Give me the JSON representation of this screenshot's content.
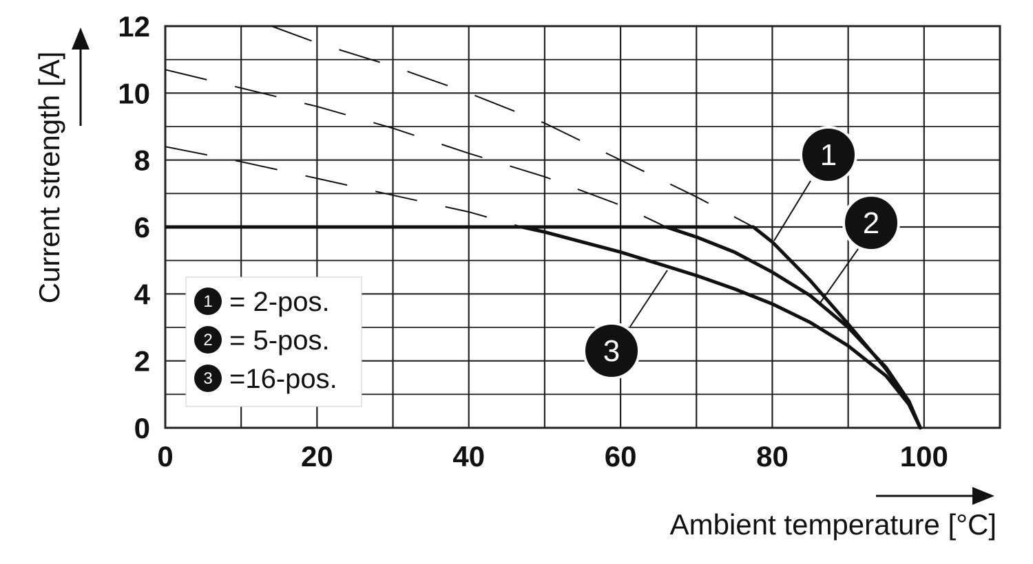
{
  "chart_data": {
    "type": "line",
    "xlabel": "Ambient temperature [°C]",
    "ylabel": "Current strength [A]",
    "xlim": [
      0,
      110
    ],
    "ylim": [
      0,
      12
    ],
    "x_major_ticks": [
      0,
      20,
      40,
      60,
      80,
      100
    ],
    "y_major_ticks": [
      0,
      2,
      4,
      6,
      8,
      10,
      12
    ],
    "x_grid_step": 10,
    "y_grid_step": 1,
    "grid": true,
    "legend": {
      "placement": "bottom-left",
      "entries": [
        {
          "marker": "1",
          "text": "= 2-pos."
        },
        {
          "marker": "2",
          "text": "= 5-pos."
        },
        {
          "marker": "3",
          "text": "=16-pos."
        }
      ]
    },
    "plateau": {
      "y": 6,
      "x_start": 0,
      "x_end": 77.5
    },
    "series": [
      {
        "marker": "1",
        "solid": {
          "x": [
            77.5,
            80,
            85,
            90,
            95,
            98,
            99.5
          ],
          "y": [
            6.0,
            5.55,
            4.4,
            3.1,
            1.75,
            0.75,
            0.0
          ]
        },
        "dashed": {
          "x": [
            14,
            20,
            30,
            40,
            50,
            60,
            70,
            77.5
          ],
          "y": [
            12.0,
            11.5,
            10.8,
            10.0,
            9.1,
            8.0,
            6.9,
            6.0
          ]
        }
      },
      {
        "marker": "2",
        "solid": {
          "x": [
            66,
            70,
            75,
            80,
            85,
            90,
            95,
            98,
            99.5
          ],
          "y": [
            6.0,
            5.7,
            5.25,
            4.65,
            3.95,
            3.0,
            1.8,
            0.8,
            0.0
          ]
        },
        "dashed": {
          "x": [
            0,
            10,
            20,
            30,
            40,
            50,
            60,
            66
          ],
          "y": [
            10.7,
            10.15,
            9.6,
            8.95,
            8.2,
            7.5,
            6.65,
            6.0
          ]
        }
      },
      {
        "marker": "3",
        "solid": {
          "x": [
            47,
            50,
            55,
            60,
            65,
            70,
            75,
            80,
            85,
            90,
            95,
            98,
            99.5
          ],
          "y": [
            6.0,
            5.85,
            5.55,
            5.25,
            4.9,
            4.55,
            4.15,
            3.7,
            3.15,
            2.45,
            1.55,
            0.7,
            0.0
          ]
        },
        "dashed": {
          "x": [
            0,
            10,
            20,
            30,
            40,
            47
          ],
          "y": [
            8.4,
            7.95,
            7.45,
            6.95,
            6.45,
            6.0
          ]
        }
      }
    ]
  }
}
